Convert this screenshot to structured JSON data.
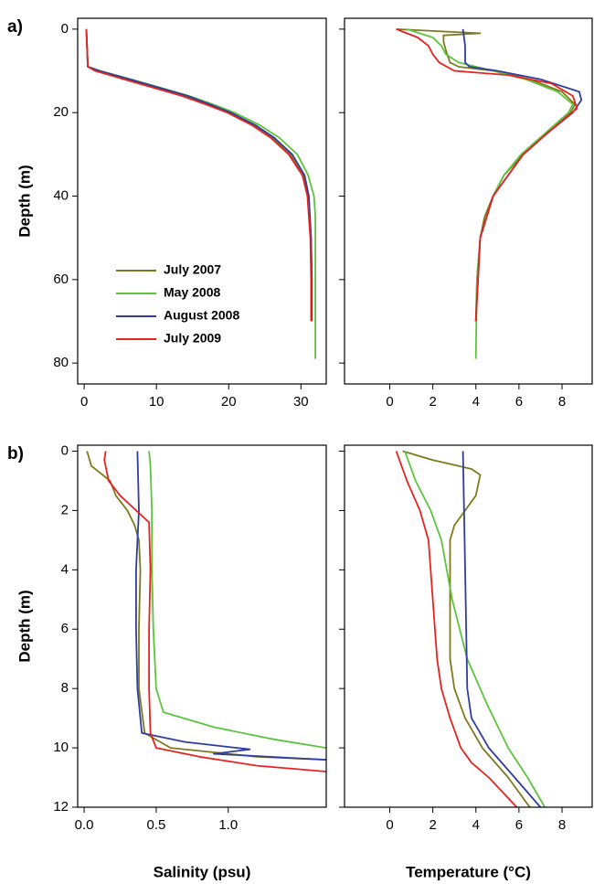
{
  "chart_data": [
    {
      "type": "profile",
      "panel_label": "a)",
      "ylabel": "Depth (m)",
      "legend": "lower left",
      "xlim": [
        -0.9,
        33.5
      ],
      "ylim": [
        -2.6,
        85
      ],
      "y_inverted": true,
      "show_ytick_labels": true,
      "xticks": [
        0,
        10,
        20,
        30
      ],
      "yticks": [
        0,
        20,
        40,
        60,
        80
      ],
      "series": [
        {
          "name": "July 2007",
          "color": "#7d7a1e",
          "x": [
            0.3,
            0.5,
            2,
            6,
            10,
            14,
            17,
            20,
            23.5,
            26,
            28.5,
            30.3,
            31,
            31.4,
            31.5,
            31.5
          ],
          "values": [
            0,
            9,
            10,
            12,
            14,
            16,
            18,
            20,
            23,
            26,
            30,
            35,
            40,
            50,
            60,
            70
          ]
        },
        {
          "name": "May 2008",
          "color": "#5cc43c",
          "x": [
            0.3,
            0.5,
            2.2,
            6.5,
            10.5,
            14.5,
            17.8,
            20.8,
            24.3,
            27,
            29.5,
            31,
            31.8,
            32,
            32,
            32
          ],
          "values": [
            0,
            9,
            10,
            12,
            14,
            16,
            18,
            20,
            23,
            26,
            30,
            35,
            40,
            45,
            60,
            79
          ]
        },
        {
          "name": "August 2008",
          "color": "#2f3e9e",
          "x": [
            0.3,
            0.5,
            2.1,
            6.3,
            10.3,
            14.3,
            17.4,
            20.3,
            23.7,
            26.3,
            28.8,
            30.5,
            31.1,
            31.4,
            31.5,
            31.5
          ],
          "values": [
            0,
            9,
            10,
            12,
            14,
            16,
            18,
            20,
            23,
            26,
            30,
            35,
            40,
            50,
            60,
            70
          ]
        },
        {
          "name": "July 2009",
          "color": "#e8231f",
          "x": [
            0.3,
            0.5,
            1.5,
            5.5,
            9.5,
            13.5,
            16.8,
            19.8,
            23.2,
            25.8,
            28.3,
            30.2,
            30.9,
            31.3,
            31.4,
            31.4
          ],
          "values": [
            0,
            9,
            10,
            12,
            14,
            16,
            18,
            20,
            23,
            26,
            30,
            35,
            40,
            50,
            60,
            70
          ]
        }
      ]
    },
    {
      "type": "profile",
      "xlim": [
        -2.1,
        9.4
      ],
      "ylim": [
        -2.6,
        85
      ],
      "y_inverted": true,
      "show_ytick_labels": false,
      "xticks": [
        0,
        2,
        4,
        6,
        8
      ],
      "yticks": [
        0,
        20,
        40,
        60,
        80
      ],
      "series": [
        {
          "color": "#7d7a1e",
          "x": [
            0.3,
            4.2,
            2.5,
            2.5,
            2.6,
            2.8,
            3.2,
            4.8,
            6.5,
            8.0,
            8.6,
            8.4,
            7.3,
            6.2,
            5.3,
            4.8,
            4.4,
            4.2,
            4.05,
            4.0
          ],
          "values": [
            0,
            1,
            1.5,
            3,
            5,
            8,
            9,
            10,
            12,
            15,
            18,
            20,
            25,
            30,
            35,
            40,
            45,
            50,
            60,
            70
          ]
        },
        {
          "color": "#5cc43c",
          "x": [
            0.8,
            2.0,
            2.4,
            2.6,
            3.2,
            4.8,
            6.3,
            7.8,
            8.5,
            8.3,
            7.2,
            6.1,
            5.3,
            4.8,
            4.2,
            4.05,
            4.0
          ],
          "values": [
            0,
            2,
            4,
            6,
            8,
            10,
            12,
            15,
            18,
            20,
            25,
            30,
            35,
            40,
            50,
            60,
            79
          ]
        },
        {
          "color": "#2f3e9e",
          "x": [
            3.4,
            3.5,
            3.5,
            3.7,
            5.0,
            7.0,
            8.8,
            8.9,
            8.5,
            7.3,
            6.2,
            4.8,
            4.2,
            4.0
          ],
          "values": [
            0,
            4,
            8,
            9,
            10,
            12,
            15,
            17,
            20,
            25,
            30,
            40,
            50,
            70
          ]
        },
        {
          "color": "#e8231f",
          "x": [
            0.3,
            1.3,
            1.8,
            2.0,
            2.3,
            3.0,
            5.5,
            7.5,
            8.5,
            8.7,
            8.0,
            7.3,
            6.2,
            4.8,
            4.2,
            4.0
          ],
          "values": [
            0,
            2,
            4,
            6,
            8,
            10,
            11,
            13,
            16,
            19,
            22,
            25,
            30,
            40,
            50,
            70
          ]
        }
      ]
    },
    {
      "type": "profile",
      "panel_label": "b)",
      "ylabel": "Depth (m)",
      "xlabel": "Salinity (psu)",
      "xlim": [
        -0.045,
        1.68
      ],
      "ylim": [
        -0.2,
        12
      ],
      "y_inverted": true,
      "show_ytick_labels": true,
      "xticks": [
        {
          "value": 0,
          "label": "0.0"
        },
        0.5,
        {
          "value": 1,
          "label": "1.0"
        }
      ],
      "yticks": [
        0,
        2,
        4,
        6,
        8,
        10,
        12
      ],
      "series": [
        {
          "color": "#7d7a1e",
          "x": [
            0.02,
            0.05,
            0.18,
            0.22,
            0.3,
            0.35,
            0.38,
            0.39,
            0.38,
            0.38,
            0.42,
            0.6,
            1.2,
            1.68
          ],
          "values": [
            0,
            0.5,
            1,
            1.5,
            2,
            2.5,
            3,
            4,
            6,
            8,
            9.5,
            10,
            10.3,
            10.4
          ]
        },
        {
          "color": "#5cc43c",
          "x": [
            0.45,
            0.46,
            0.47,
            0.47,
            0.48,
            0.5,
            0.55,
            0.9,
            1.3,
            1.68
          ],
          "values": [
            0,
            0.5,
            2,
            4,
            6,
            8,
            8.8,
            9.3,
            9.7,
            10
          ]
        },
        {
          "color": "#2f3e9e",
          "x": [
            0.37,
            0.38,
            0.36,
            0.36,
            0.37,
            0.4,
            0.7,
            1.15,
            0.9,
            1.68
          ],
          "values": [
            0,
            2,
            4,
            6,
            8,
            9.5,
            9.8,
            10.05,
            10.2,
            10.4
          ]
        },
        {
          "color": "#e8231f",
          "x": [
            0.15,
            0.14,
            0.17,
            0.25,
            0.45,
            0.46,
            0.45,
            0.45,
            0.46,
            0.5,
            0.8,
            1.2,
            1.68
          ],
          "values": [
            0,
            0.3,
            1,
            1.5,
            2.4,
            4,
            6,
            8,
            9.5,
            10,
            10.3,
            10.6,
            10.8
          ]
        }
      ]
    },
    {
      "type": "profile",
      "xlabel": "Temperature (°C)",
      "xlim": [
        -2.1,
        9.4
      ],
      "ylim": [
        -0.2,
        12
      ],
      "y_inverted": true,
      "show_ytick_labels": false,
      "xticks": [
        0,
        2,
        4,
        6,
        8
      ],
      "yticks": [
        0,
        2,
        4,
        6,
        8,
        10,
        12
      ],
      "series": [
        {
          "color": "#7d7a1e",
          "x": [
            0.6,
            2,
            3.8,
            4.2,
            4.0,
            3.5,
            3.0,
            2.8,
            2.8,
            2.8,
            3.0,
            3.5,
            4.3,
            5.5,
            6.5
          ],
          "values": [
            0,
            0.3,
            0.6,
            0.8,
            1.5,
            2,
            2.5,
            3,
            5,
            7,
            8,
            9,
            10,
            11,
            12
          ]
        },
        {
          "color": "#5cc43c",
          "x": [
            0.7,
            1.2,
            1.9,
            2.4,
            2.9,
            3.6,
            4.5,
            5.5,
            6.4,
            7.2
          ],
          "values": [
            0,
            1,
            2,
            3,
            5,
            7,
            8.5,
            10,
            11,
            12
          ]
        },
        {
          "color": "#2f3e9e",
          "x": [
            3.4,
            3.5,
            3.6,
            3.8,
            4.6,
            5.8,
            7.0
          ],
          "values": [
            0,
            4,
            8,
            9,
            10,
            11,
            12
          ]
        },
        {
          "color": "#e8231f",
          "x": [
            0.3,
            0.8,
            1.4,
            1.8,
            2.0,
            2.2,
            2.4,
            2.8,
            3.3,
            3.8,
            4.6,
            5.9
          ],
          "values": [
            0,
            1,
            2,
            3,
            5,
            7,
            8,
            9,
            10,
            10.5,
            11,
            12
          ]
        }
      ]
    }
  ]
}
